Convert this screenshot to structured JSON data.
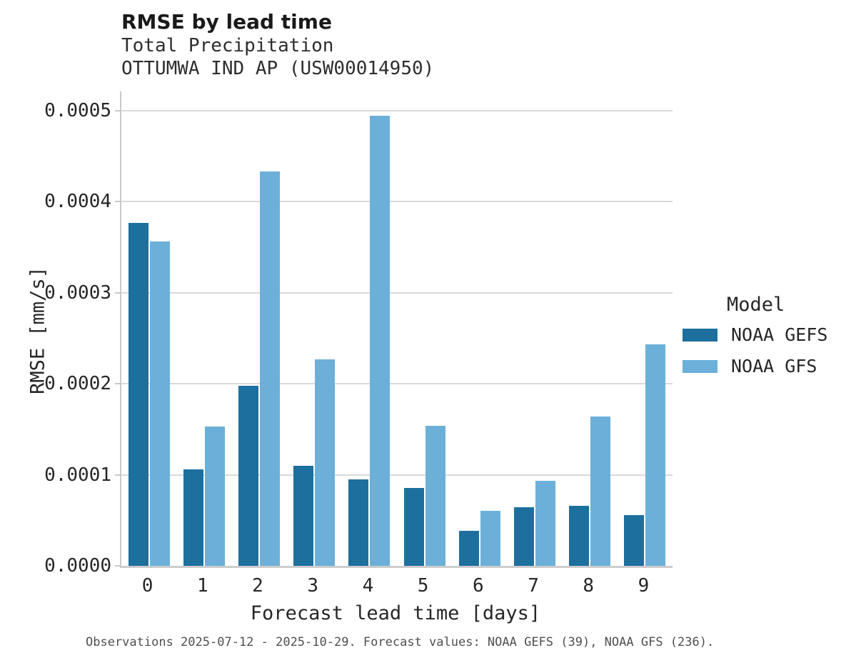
{
  "header": {
    "title": "RMSE by lead time",
    "subtitle1": "Total Precipitation",
    "subtitle2": "OTTUMWA IND AP (USW00014950)"
  },
  "axes": {
    "xlabel": "Forecast lead time [days]",
    "ylabel": "RMSE [mm/s]"
  },
  "legend": {
    "title": "Model",
    "entries": [
      {
        "label": "NOAA GEFS",
        "color": "#1d6f9e"
      },
      {
        "label": "NOAA GFS",
        "color": "#6cb0d9"
      }
    ]
  },
  "caption": "Observations 2025-07-12 - 2025-10-29. Forecast values: NOAA GEFS (39), NOAA GFS (236).",
  "colors": {
    "gefs": "#1d6f9e",
    "gfs": "#6cb0d9",
    "gridline": "#d9d9d9",
    "spine": "#c9c9c9",
    "text": "#262626",
    "caption_text": "#4f4f4f"
  },
  "chart_data": {
    "type": "bar",
    "title": "RMSE by lead time",
    "subtitle": [
      "Total Precipitation",
      "OTTUMWA IND AP (USW00014950)"
    ],
    "xlabel": "Forecast lead time [days]",
    "ylabel": "RMSE [mm/s]",
    "categories": [
      "0",
      "1",
      "2",
      "3",
      "4",
      "5",
      "6",
      "7",
      "8",
      "9"
    ],
    "series": [
      {
        "name": "NOAA GEFS",
        "color": "#1d6f9e",
        "values": [
          0.000377,
          0.000106,
          0.000198,
          0.00011,
          9.47e-05,
          8.52e-05,
          3.82e-05,
          6.42e-05,
          6.6e-05,
          5.61e-05
        ]
      },
      {
        "name": "NOAA GFS",
        "color": "#6cb0d9",
        "values": [
          0.000356,
          0.000153,
          0.000433,
          0.000227,
          0.000494,
          0.000154,
          6.02e-05,
          9.33e-05,
          0.000164,
          0.000243
        ]
      }
    ],
    "y_ticks": [
      0,
      0.0001,
      0.0002,
      0.0003,
      0.0004,
      0.0005
    ],
    "y_tick_labels": [
      "0.0000",
      "0.0001",
      "0.0002",
      "0.0003",
      "0.0004",
      "0.0005"
    ],
    "ylim": [
      0,
      0.000521
    ],
    "grid": "horizontal",
    "legend_title": "Model",
    "legend_position": "right"
  }
}
